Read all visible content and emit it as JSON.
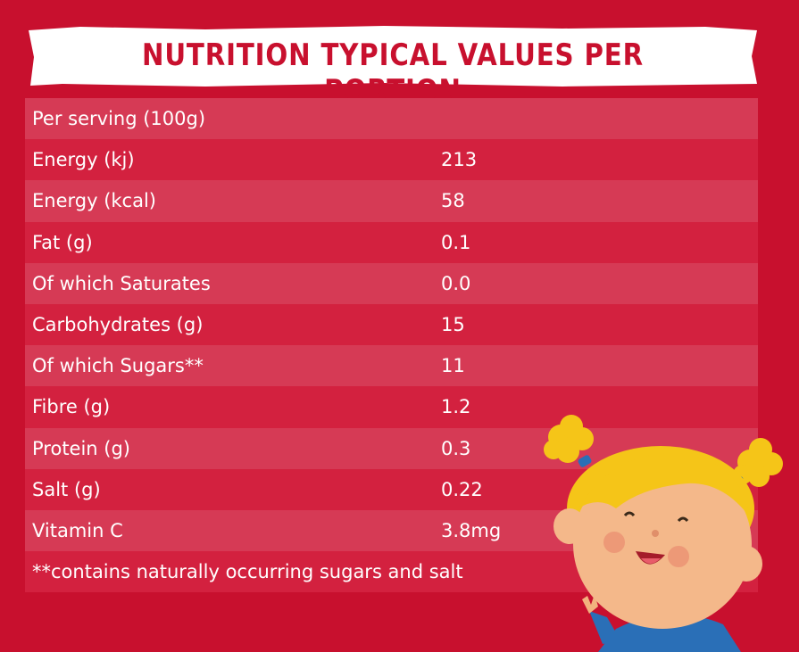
{
  "title": "NUTRITION TYPICAL VALUES PER PORTION",
  "serving": "Per serving (100g)",
  "rows": [
    {
      "label": "Energy (kj)",
      "value": "213"
    },
    {
      "label": "Energy (kcal)",
      "value": "58"
    },
    {
      "label": "Fat (g)",
      "value": "0.1"
    },
    {
      "label": "Of which Saturates",
      "value": "0.0"
    },
    {
      "label": "Carbohydrates (g)",
      "value": "15"
    },
    {
      "label": "Of which Sugars**",
      "value": "11"
    },
    {
      "label": "Fibre (g)",
      "value": "1.2"
    },
    {
      "label": "Protein (g)",
      "value": "0.3"
    },
    {
      "label": "Salt (g)",
      "value": "0.22"
    },
    {
      "label": "Vitamin C",
      "value": "3.8mg"
    }
  ],
  "footnote": "**contains naturally occurring sugars and salt",
  "colors": {
    "background": "#c8102e",
    "row_light": "#d63a55",
    "row_dark": "#d3213f",
    "banner": "#ffffff"
  }
}
